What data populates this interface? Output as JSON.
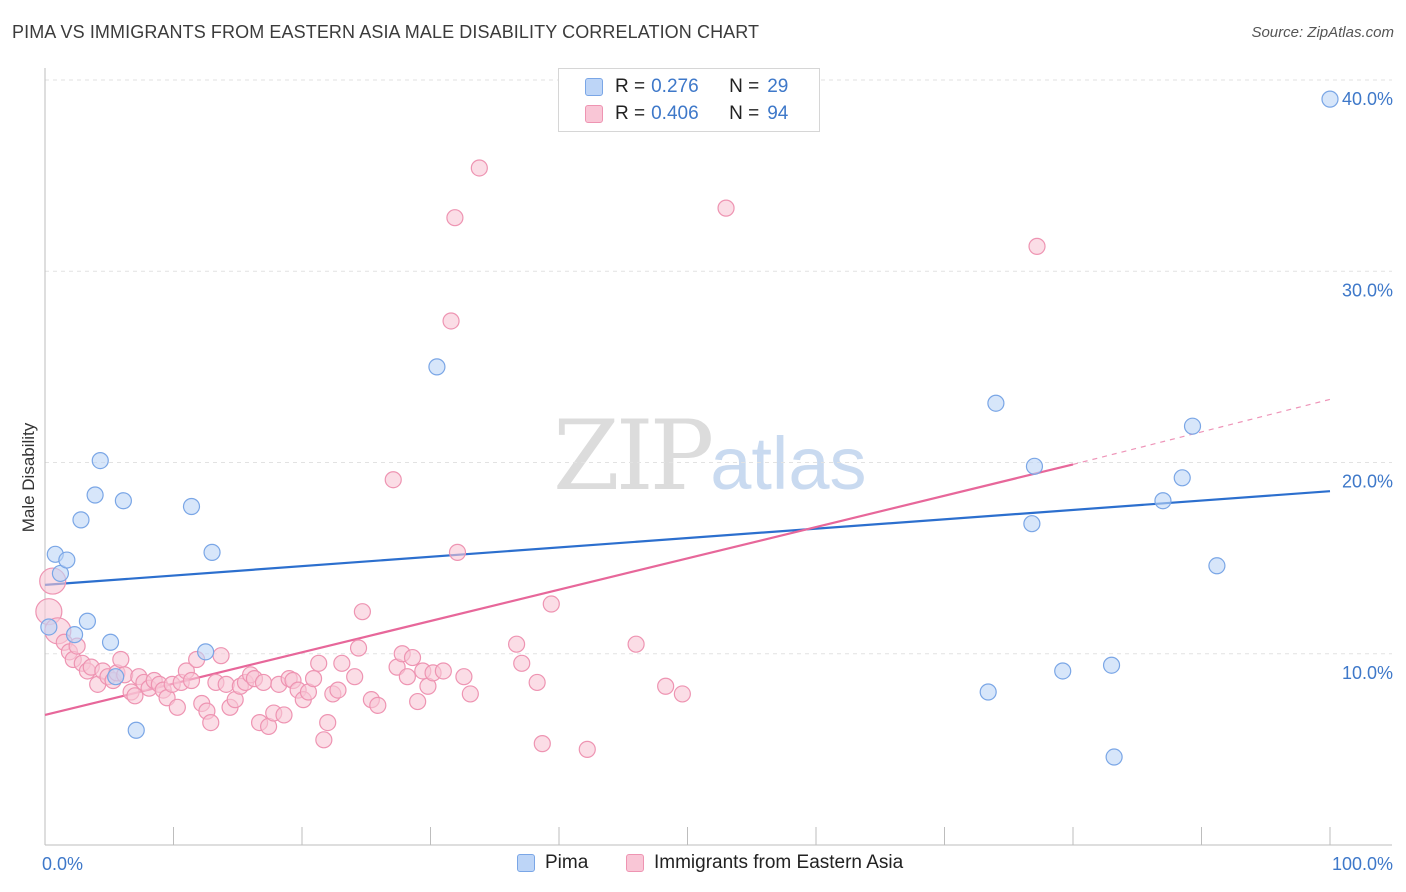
{
  "header": {
    "title": "PIMA VS IMMIGRANTS FROM EASTERN ASIA MALE DISABILITY CORRELATION CHART",
    "source": "Source: ZipAtlas.com"
  },
  "watermark": {
    "zip": "ZIP",
    "atlas": "atlas"
  },
  "legend": {
    "rows": [
      {
        "r_label": "R =",
        "r_value": "0.276",
        "n_label": "N =",
        "n_value": "29"
      },
      {
        "r_label": "R =",
        "r_value": "0.406",
        "n_label": "N =",
        "n_value": "94"
      }
    ]
  },
  "bottom_legend": {
    "items": [
      {
        "label": "Pima"
      },
      {
        "label": "Immigrants from Eastern Asia"
      }
    ]
  },
  "colors": {
    "pima_fill": "#bdd5f7",
    "pima_stroke": "#7aa6e6",
    "pima_line": "#2c6fce",
    "asia_fill": "#f9c6d6",
    "asia_stroke": "#ee94b2",
    "asia_line": "#e7679a",
    "tick_text": "#3e78c9",
    "grid": "#e2e2e2"
  },
  "chart_data": {
    "type": "scatter",
    "title": "PIMA VS IMMIGRANTS FROM EASTERN ASIA MALE DISABILITY CORRELATION CHART",
    "xlabel": "",
    "ylabel": "Male Disability",
    "xlim": [
      0,
      100
    ],
    "ylim": [
      0,
      40
    ],
    "x_tick_labels": [
      "0.0%",
      "100.0%"
    ],
    "y_ticks": [
      10,
      20,
      30,
      40
    ],
    "y_tick_labels": [
      "10.0%",
      "20.0%",
      "30.0%",
      "40.0%"
    ],
    "grid": true,
    "legend_position": "top-center",
    "series": [
      {
        "name": "Pima",
        "r": 0.276,
        "n": 29,
        "trend": {
          "x": [
            0,
            100
          ],
          "y": [
            13.6,
            18.5
          ]
        },
        "points": [
          [
            0.3,
            11.4
          ],
          [
            0.8,
            15.2
          ],
          [
            1.2,
            14.2
          ],
          [
            1.7,
            14.9
          ],
          [
            2.3,
            11.0
          ],
          [
            2.8,
            17.0
          ],
          [
            3.3,
            11.7
          ],
          [
            3.9,
            18.3
          ],
          [
            4.3,
            20.1
          ],
          [
            5.1,
            10.6
          ],
          [
            5.5,
            8.8
          ],
          [
            6.1,
            18.0
          ],
          [
            7.1,
            6.0
          ],
          [
            11.4,
            17.7
          ],
          [
            12.5,
            10.1
          ],
          [
            13.0,
            15.3
          ],
          [
            30.5,
            25.0
          ],
          [
            74.0,
            23.1
          ],
          [
            73.4,
            8.0
          ],
          [
            76.8,
            16.8
          ],
          [
            77.0,
            19.8
          ],
          [
            79.2,
            9.1
          ],
          [
            83.2,
            4.6
          ],
          [
            83.0,
            9.4
          ],
          [
            87.0,
            18.0
          ],
          [
            88.5,
            19.2
          ],
          [
            89.3,
            21.9
          ],
          [
            91.2,
            14.6
          ],
          [
            100.0,
            39.0
          ]
        ]
      },
      {
        "name": "Immigrants from Eastern Asia",
        "r": 0.406,
        "n": 94,
        "trend": {
          "x": [
            0,
            80
          ],
          "y": [
            6.8,
            19.9
          ]
        },
        "trend_dashed": {
          "x": [
            80,
            100
          ],
          "y": [
            19.9,
            23.3
          ]
        },
        "points": [
          [
            0.3,
            12.2
          ],
          [
            0.6,
            13.8
          ],
          [
            1.0,
            11.2
          ],
          [
            1.5,
            10.6
          ],
          [
            1.9,
            10.1
          ],
          [
            2.2,
            9.7
          ],
          [
            2.5,
            10.4
          ],
          [
            2.9,
            9.5
          ],
          [
            3.3,
            9.1
          ],
          [
            3.6,
            9.3
          ],
          [
            4.1,
            8.4
          ],
          [
            4.5,
            9.1
          ],
          [
            4.9,
            8.8
          ],
          [
            5.3,
            8.6
          ],
          [
            5.6,
            9.0
          ],
          [
            5.9,
            9.7
          ],
          [
            6.2,
            8.9
          ],
          [
            6.7,
            8.0
          ],
          [
            7.0,
            7.8
          ],
          [
            7.3,
            8.8
          ],
          [
            7.7,
            8.5
          ],
          [
            8.1,
            8.2
          ],
          [
            8.5,
            8.6
          ],
          [
            8.9,
            8.4
          ],
          [
            9.2,
            8.1
          ],
          [
            9.5,
            7.7
          ],
          [
            9.9,
            8.4
          ],
          [
            10.3,
            7.2
          ],
          [
            10.6,
            8.5
          ],
          [
            11.0,
            9.1
          ],
          [
            11.4,
            8.6
          ],
          [
            11.8,
            9.7
          ],
          [
            12.2,
            7.4
          ],
          [
            12.6,
            7.0
          ],
          [
            12.9,
            6.4
          ],
          [
            13.3,
            8.5
          ],
          [
            13.7,
            9.9
          ],
          [
            14.1,
            8.4
          ],
          [
            14.4,
            7.2
          ],
          [
            14.8,
            7.6
          ],
          [
            15.2,
            8.3
          ],
          [
            15.6,
            8.5
          ],
          [
            16.0,
            8.9
          ],
          [
            16.3,
            8.7
          ],
          [
            16.7,
            6.4
          ],
          [
            17.0,
            8.5
          ],
          [
            17.4,
            6.2
          ],
          [
            17.8,
            6.9
          ],
          [
            18.2,
            8.4
          ],
          [
            18.6,
            6.8
          ],
          [
            19.0,
            8.7
          ],
          [
            19.3,
            8.6
          ],
          [
            19.7,
            8.1
          ],
          [
            20.1,
            7.6
          ],
          [
            20.5,
            8.0
          ],
          [
            20.9,
            8.7
          ],
          [
            21.3,
            9.5
          ],
          [
            21.7,
            5.5
          ],
          [
            22.0,
            6.4
          ],
          [
            22.4,
            7.9
          ],
          [
            22.8,
            8.1
          ],
          [
            23.1,
            9.5
          ],
          [
            24.1,
            8.8
          ],
          [
            24.4,
            10.3
          ],
          [
            24.7,
            12.2
          ],
          [
            25.4,
            7.6
          ],
          [
            25.9,
            7.3
          ],
          [
            27.1,
            19.1
          ],
          [
            27.4,
            9.3
          ],
          [
            27.8,
            10.0
          ],
          [
            28.2,
            8.8
          ],
          [
            28.6,
            9.8
          ],
          [
            29.0,
            7.5
          ],
          [
            29.4,
            9.1
          ],
          [
            29.8,
            8.3
          ],
          [
            30.2,
            9.0
          ],
          [
            31.0,
            9.1
          ],
          [
            31.9,
            32.8
          ],
          [
            31.6,
            27.4
          ],
          [
            32.1,
            15.3
          ],
          [
            32.6,
            8.8
          ],
          [
            33.1,
            7.9
          ],
          [
            33.8,
            35.4
          ],
          [
            36.7,
            10.5
          ],
          [
            37.1,
            9.5
          ],
          [
            38.3,
            8.5
          ],
          [
            38.7,
            5.3
          ],
          [
            39.4,
            12.6
          ],
          [
            42.2,
            5.0
          ],
          [
            46.0,
            10.5
          ],
          [
            48.3,
            8.3
          ],
          [
            49.6,
            7.9
          ],
          [
            53.0,
            33.3
          ],
          [
            77.2,
            31.3
          ]
        ]
      }
    ]
  }
}
